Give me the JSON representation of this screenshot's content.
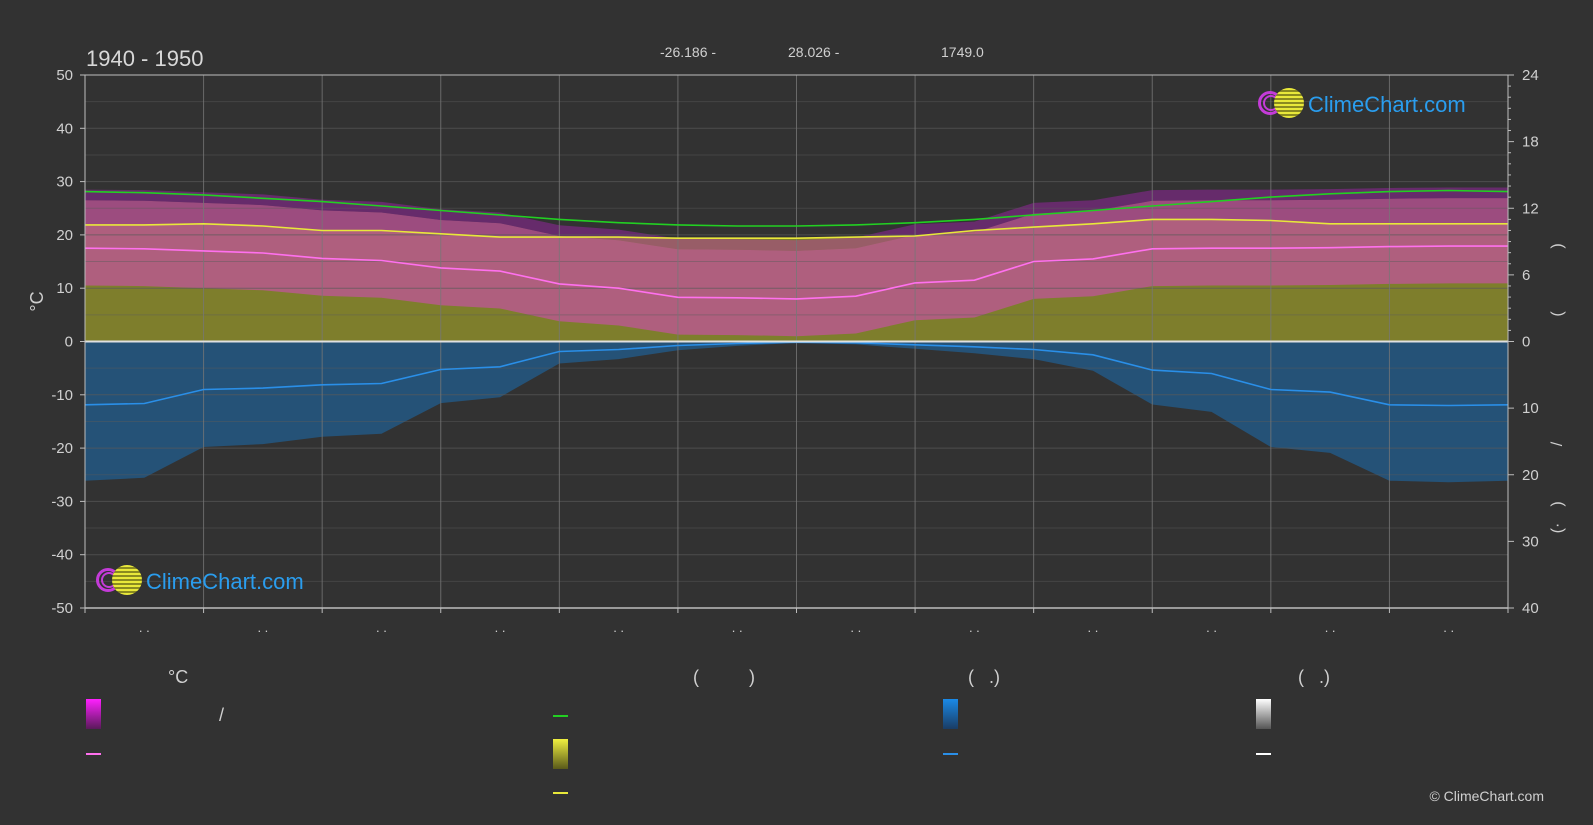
{
  "header": {
    "period": "1940 - 1950",
    "lat": "-26.186 -",
    "lon": "28.026 -",
    "elev": "1749.0"
  },
  "brand": {
    "name": "ClimeChart.com",
    "copyright": "© ClimeChart.com"
  },
  "left_axis_label": "°C",
  "right_axis_glyphs": [
    ")",
    "(",
    "/",
    ")",
    "(·"
  ],
  "month_tick_labels": [
    ". .",
    ". .",
    ". .",
    ". .",
    ". .",
    ". .",
    ". .",
    ". .",
    ". .",
    ". .",
    ". .",
    ". ."
  ],
  "legend": {
    "group_temperature": "°C",
    "group_sun": "(          )",
    "group_rain": "(   .)",
    "group_snow": "(   .)",
    "temp_range_slash": "/"
  },
  "colors": {
    "background": "#323232",
    "grid": "#5a5a5a",
    "daylight": "#22d022",
    "sunshine": "#e8e83a",
    "sunshine_fill": "#8c8c2c",
    "temp_fill": "#c0559a",
    "temp_mean": "#ff70ee",
    "temp_max_tint": "#c81fd8",
    "rain_fill": "#1f5f94",
    "rain_mean": "#2a8fe8",
    "snow": "#ffffff",
    "brand": "#2a9dee"
  },
  "chart_data": {
    "type": "line",
    "title": "1940 - 1950",
    "ylabel": "°C",
    "ylim": [
      -50,
      50
    ],
    "y_ticks": [
      50,
      40,
      30,
      20,
      10,
      0,
      -10,
      -20,
      -30,
      -40,
      -50
    ],
    "y2_upper_ticks": [
      24,
      18,
      12,
      6,
      0
    ],
    "y2_lower_ticks": [
      0,
      10,
      20,
      30,
      40
    ],
    "y2_upper_range": [
      0,
      24
    ],
    "y2_lower_range": [
      0,
      40
    ],
    "grid": true,
    "x_points": [
      0,
      0.5,
      1,
      1.5,
      2,
      2.5,
      3,
      3.5,
      4,
      4.5,
      5,
      5.5,
      6,
      6.5,
      7,
      7.5,
      8,
      8.5,
      9,
      9.5,
      10,
      10.5,
      11,
      11.5,
      12
    ],
    "series": [
      {
        "key": "daylight",
        "axis": "hours",
        "values": [
          13.5,
          13.4,
          13.2,
          12.9,
          12.6,
          12.2,
          11.8,
          11.4,
          11.0,
          10.7,
          10.5,
          10.4,
          10.4,
          10.5,
          10.7,
          11.0,
          11.4,
          11.8,
          12.2,
          12.6,
          13.0,
          13.3,
          13.5,
          13.6,
          13.5
        ]
      },
      {
        "key": "sunshine",
        "axis": "hours",
        "values": [
          10.5,
          10.5,
          10.6,
          10.4,
          10.0,
          10.0,
          9.7,
          9.4,
          9.4,
          9.4,
          9.3,
          9.3,
          9.3,
          9.4,
          9.5,
          10.0,
          10.3,
          10.6,
          11.0,
          11.0,
          10.9,
          10.6,
          10.6,
          10.6,
          10.6
        ]
      },
      {
        "key": "temp_mean",
        "axis": "celsius",
        "values": [
          17.5,
          17.4,
          17.0,
          16.6,
          15.6,
          15.2,
          13.8,
          13.2,
          10.8,
          10.0,
          8.3,
          8.2,
          8.0,
          8.5,
          11.0,
          11.5,
          15.0,
          15.5,
          17.4,
          17.5,
          17.5,
          17.6,
          17.8,
          17.9,
          17.9
        ]
      },
      {
        "key": "rain_mean",
        "axis": "mm",
        "values": [
          9.5,
          9.3,
          7.2,
          7.0,
          6.5,
          6.3,
          4.2,
          3.8,
          1.5,
          1.2,
          0.6,
          0.3,
          0.1,
          0.2,
          0.5,
          0.8,
          1.2,
          2.0,
          4.3,
          4.8,
          7.2,
          7.6,
          9.5,
          9.6,
          9.5
        ]
      }
    ]
  }
}
